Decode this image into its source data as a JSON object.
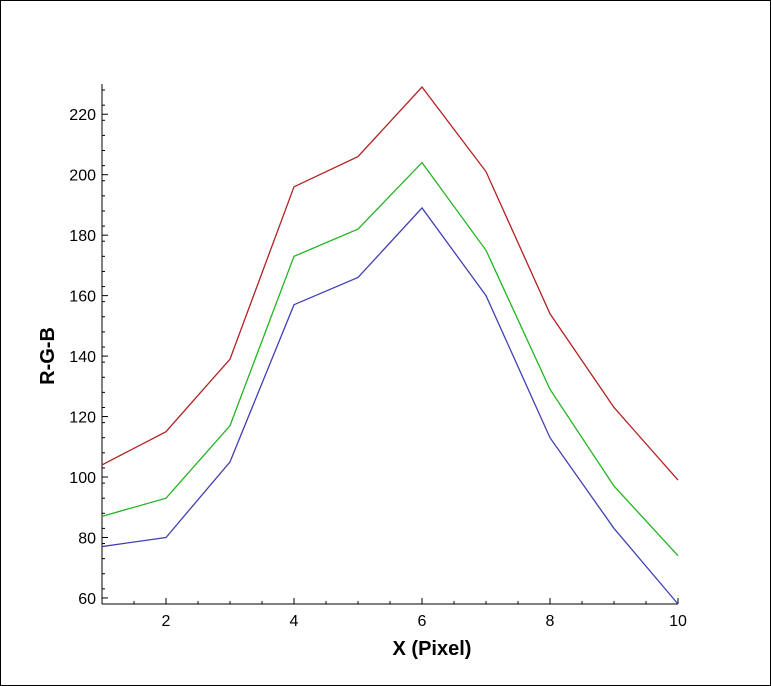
{
  "chart_data": {
    "type": "line",
    "title": "",
    "xlabel": "X (Pixel)",
    "ylabel": "R-G-B",
    "xlim": [
      1,
      10
    ],
    "ylim": [
      58,
      230
    ],
    "x_ticks": [
      2,
      4,
      6,
      8,
      10
    ],
    "y_ticks": [
      60,
      80,
      100,
      120,
      140,
      160,
      180,
      200,
      220
    ],
    "grid": false,
    "legend": "none",
    "x": [
      1,
      2,
      3,
      4,
      5,
      6,
      7,
      8,
      9,
      10
    ],
    "series": [
      {
        "color": "#b22222",
        "values": [
          104,
          115,
          139,
          196,
          206,
          229,
          201,
          154,
          123,
          99
        ]
      },
      {
        "color": "#22b422",
        "values": [
          87,
          93,
          117,
          173,
          182,
          204,
          175,
          129,
          97,
          74
        ]
      },
      {
        "color": "#4040b4",
        "values": [
          77,
          80,
          105,
          157,
          166,
          189,
          160,
          113,
          83,
          58
        ]
      }
    ]
  }
}
